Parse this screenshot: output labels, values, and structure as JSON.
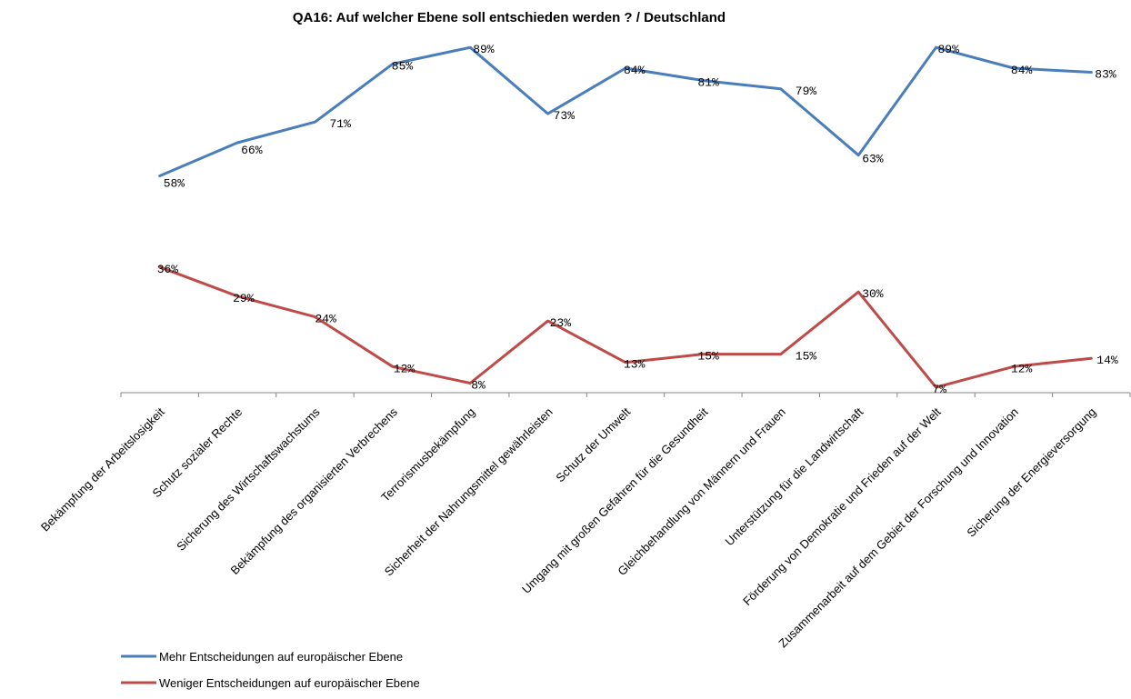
{
  "chart_data": {
    "type": "line",
    "title": "QA16: Auf welcher Ebene soll entschieden werden ? / Deutschland",
    "xlabel": "",
    "ylabel": "",
    "ylim": [
      0,
      100
    ],
    "grid": false,
    "legend_position": "bottom-left",
    "categories": [
      "Bekämpfung der Arbeitslosigkeit",
      "Schutz sozialer Rechte",
      "Sicherung des Wirtschaftswachstums",
      "Bekämpfung des organisierten Verbrechens",
      "Terrorismusbekämpfung",
      "Sicherheit der Nahrungsmittel gewährleisten",
      "Schutz der Umwelt",
      "Umgang mit großen Gefahren für die Gesundheit",
      "Gleichbehandlung von Männern und Frauen",
      "Unterstützung für die Landwirtschaft",
      "Förderung von Demokratie und Frieden auf der Welt",
      "Zusammenarbeit auf dem Gebiet der Forschung und Innovation",
      "Sicherung der Energieversorgung"
    ],
    "series": [
      {
        "name": "Mehr Entscheidungen auf europäischer Ebene",
        "color": "#4a7ebb",
        "values": [
          58,
          66,
          71,
          85,
          89,
          73,
          84,
          81,
          79,
          63,
          89,
          84,
          83
        ],
        "labels": [
          "58%",
          "66%",
          "71%",
          "85%",
          "89%",
          "73%",
          "84%",
          "81%",
          "79%",
          "63%",
          "89%",
          "84%",
          "83%"
        ]
      },
      {
        "name": "Weniger Entscheidungen auf europäischer Ebene",
        "color": "#be4b48",
        "values": [
          36,
          29,
          24,
          12,
          8,
          23,
          13,
          15,
          15,
          30,
          7,
          12,
          14
        ],
        "labels": [
          "36%",
          "29%",
          "24%",
          "12%",
          "8%",
          "23%",
          "13%",
          "15%",
          "15%",
          "30%",
          "7%",
          "12%",
          "14%"
        ]
      }
    ]
  }
}
